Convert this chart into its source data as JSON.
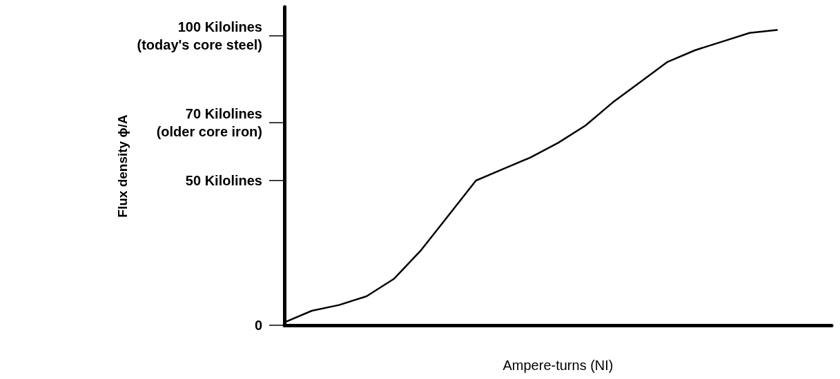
{
  "chart_data": {
    "type": "line",
    "xlabel": "Ampere-turns (NI)",
    "ylabel": "Flux density ϕ/A",
    "categories": [
      null,
      null,
      null,
      null,
      null,
      null,
      null,
      null,
      null,
      null,
      null,
      null,
      null,
      null,
      null,
      null,
      null,
      null,
      null,
      null,
      null
    ],
    "series": [
      {
        "color": "#000000",
        "values": [
          1,
          5,
          7,
          10,
          16,
          26,
          38,
          50,
          54,
          58,
          63,
          69,
          77,
          84,
          91,
          95,
          98,
          101,
          102,
          null,
          null
        ]
      }
    ],
    "ylim": [
      0,
      110
    ],
    "yticks": [
      0,
      {
        "value": 50,
        "label": "50 Kilolines"
      },
      {
        "value": 70,
        "label": "70 Kilolines\n(older core iron)"
      },
      {
        "value": 100,
        "label": "100 Kilolines\n(today's core steel)"
      }
    ],
    "tick_labels": "y",
    "grid": false,
    "marker": "none",
    "line_style": "solid"
  }
}
